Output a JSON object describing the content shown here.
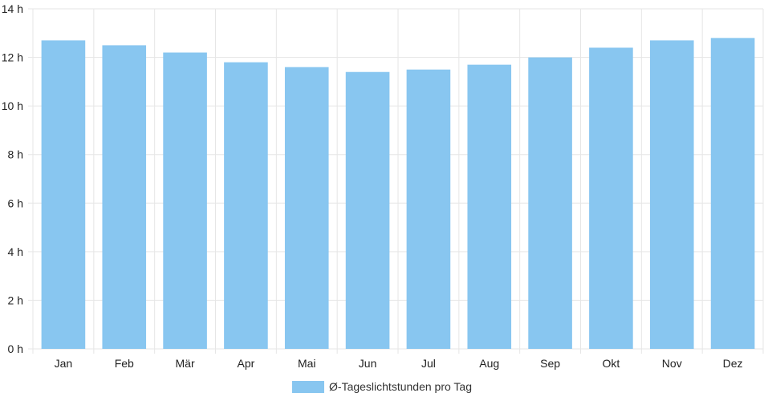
{
  "chart_data": {
    "type": "bar",
    "categories": [
      "Jan",
      "Feb",
      "Mär",
      "Apr",
      "Mai",
      "Jun",
      "Jul",
      "Aug",
      "Sep",
      "Okt",
      "Nov",
      "Dez"
    ],
    "series": [
      {
        "name": "Ø-Tageslichtstunden pro Tag",
        "values": [
          12.7,
          12.5,
          12.2,
          11.8,
          11.6,
          11.4,
          11.5,
          11.7,
          12.0,
          12.4,
          12.7,
          12.8
        ]
      }
    ],
    "y_ticks": [
      "0 h",
      "2 h",
      "4 h",
      "6 h",
      "8 h",
      "10 h",
      "12 h",
      "14 h"
    ],
    "ylim": [
      0,
      14
    ],
    "grid": true,
    "legend_position": "bottom",
    "colors": {
      "bar": "#88c6f0",
      "grid": "#e6e6e6"
    }
  }
}
